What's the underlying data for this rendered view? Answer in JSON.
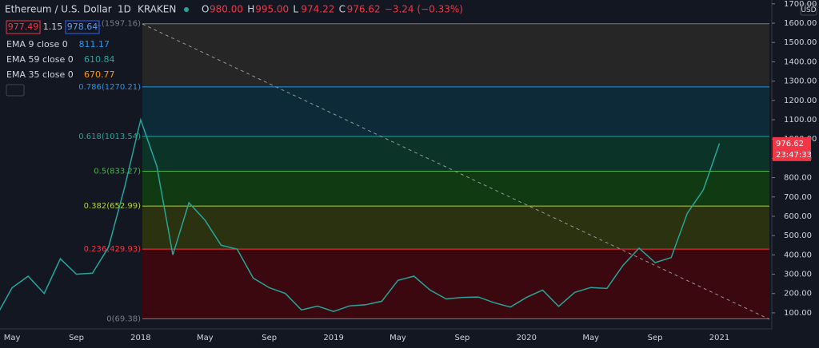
{
  "header": {
    "symbol": "Ethereum / U.S. Dollar",
    "interval": "1D",
    "exchange": "KRAKEN",
    "ohlc": [
      {
        "key": "O",
        "value": "980.00"
      },
      {
        "key": "H",
        "value": "995.00"
      },
      {
        "key": "L",
        "value": "974.22"
      },
      {
        "key": "C",
        "value": "976.62"
      }
    ],
    "change": "−3.24 (−0.33%)",
    "bid": "977.49",
    "spread": "1.15",
    "ask": "978.64"
  },
  "indicators": [
    {
      "name": "EMA 9 close 0",
      "value": "811.17",
      "color": "#2196f3"
    },
    {
      "name": "EMA 59 close 0",
      "value": "610.84",
      "color": "#26a69a"
    },
    {
      "name": "EMA 35 close 0",
      "value": "670.77",
      "color": "#ff9800"
    }
  ],
  "chart_data": {
    "type": "line",
    "currency": "USD",
    "color": "#26a69a",
    "categories": [
      null,
      "May",
      null,
      null,
      null,
      "Sep",
      null,
      null,
      null,
      "2018",
      null,
      null,
      null,
      "May",
      null,
      null,
      null,
      "Sep",
      null,
      null,
      null,
      "2019",
      null,
      null,
      null,
      "May",
      null,
      null,
      null,
      "Sep",
      null,
      null,
      null,
      "2020",
      null,
      null,
      null,
      "May",
      null,
      null,
      null,
      "Sep",
      null,
      null,
      null,
      "2021",
      null,
      null
    ],
    "values": [
      80,
      230,
      290,
      200,
      380,
      300,
      305,
      440,
      750,
      1100,
      860,
      400,
      670,
      580,
      450,
      430,
      280,
      230,
      200,
      115,
      135,
      107,
      136,
      142,
      160,
      268,
      290,
      218,
      172,
      180,
      182,
      152,
      130,
      180,
      218,
      133,
      206,
      231,
      226,
      345,
      435,
      360,
      386,
      615,
      737,
      976.62,
      null,
      null
    ],
    "ylim": [
      17,
      1720
    ],
    "yticks": [
      {
        "value": 100,
        "label": "100.00"
      },
      {
        "value": 200,
        "label": "200.00"
      },
      {
        "value": 300,
        "label": "300.00"
      },
      {
        "value": 400,
        "label": "400.00"
      },
      {
        "value": 500,
        "label": "500.00"
      },
      {
        "value": 600,
        "label": "600.00"
      },
      {
        "value": 700,
        "label": "700.00"
      },
      {
        "value": 800,
        "label": "800.00"
      },
      {
        "value": 900,
        "label": "900.00"
      },
      {
        "value": 1000,
        "label": "1000.00"
      },
      {
        "value": 1100,
        "label": "1100.00"
      },
      {
        "value": 1200,
        "label": "1200.00"
      },
      {
        "value": 1300,
        "label": "1300.00"
      },
      {
        "value": 1400,
        "label": "1400.00"
      },
      {
        "value": 1500,
        "label": "1500.00"
      },
      {
        "value": 1600,
        "label": "1600.00"
      },
      {
        "value": 1700,
        "label": "1700.00"
      }
    ],
    "last_price": 976.62,
    "countdown": "23:47:33",
    "fib_levels": [
      {
        "value": 1597.16,
        "label": "1(1597.16)",
        "color": "#787b86",
        "fill": "#262626"
      },
      {
        "value": 1270.21,
        "label": "0.786(1270.21)",
        "color": "#2196f3",
        "fill": "#0c2a38"
      },
      {
        "value": 1013.54,
        "label": "0.618(1013.54)",
        "color": "#26a69a",
        "fill": "#0b3328"
      },
      {
        "value": 833.27,
        "label": "0.5(833.27)",
        "color": "#4caf50",
        "fill": "#0f3a12"
      },
      {
        "value": 652.99,
        "label": "0.382(652.99)",
        "color": "#b2d235",
        "fill": "#2a3210"
      },
      {
        "value": 429.93,
        "label": "0.236(429.93)",
        "color": "#f23645",
        "fill": "#3a080e"
      },
      {
        "value": 69.38,
        "label": "0(69.38)",
        "color": "#787b86",
        "fill": "none"
      }
    ]
  }
}
